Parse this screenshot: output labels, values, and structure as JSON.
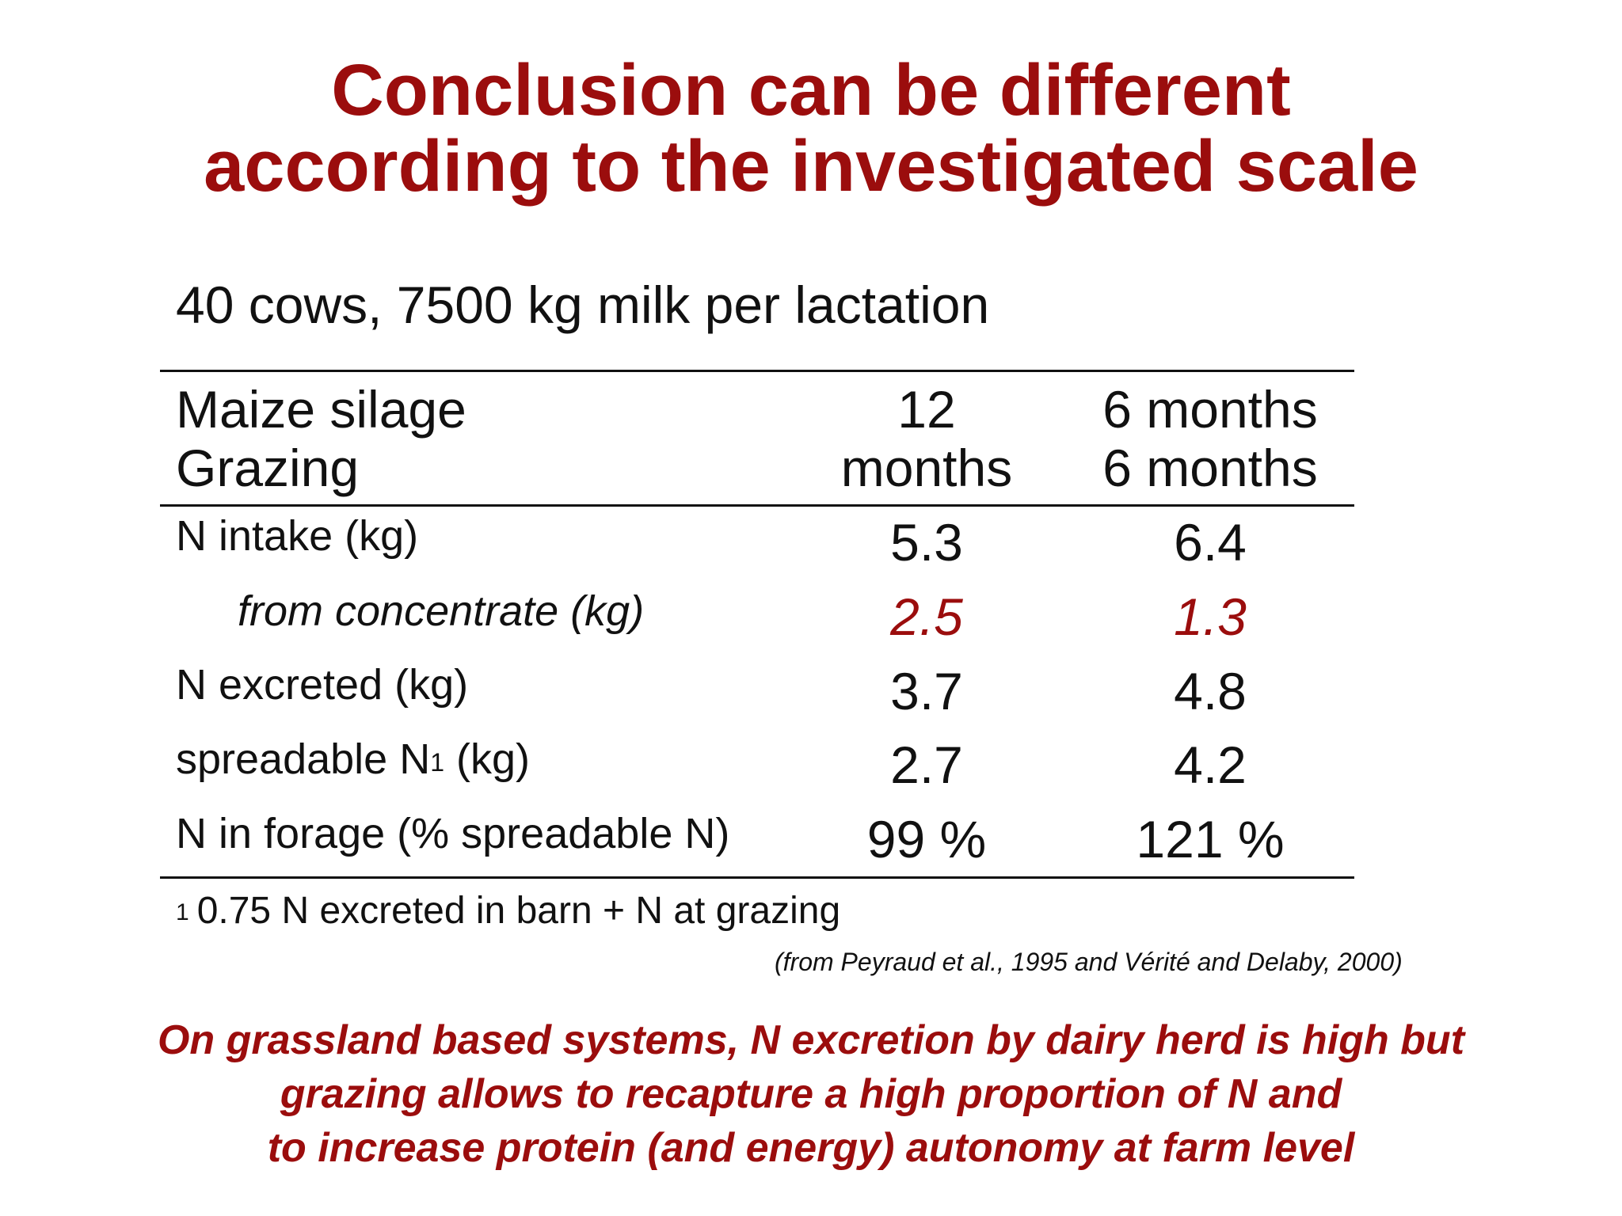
{
  "slide": {
    "title_line1": "Conclusion can be different",
    "title_line2": "according to the investigated scale",
    "subtitle": "40 cows, 7500 kg milk per lactation",
    "table": {
      "header": {
        "label_line1": "Maize silage",
        "label_line2": "Grazing",
        "col1_line1": "12",
        "col1_line2": "months",
        "col2_line1": "6 months",
        "col2_line2": "6 months"
      },
      "rows": [
        {
          "label": "N intake (kg)",
          "col1": "5.3",
          "col2": "6.4"
        },
        {
          "label": "from concentrate (kg)",
          "col1": "2.5",
          "col2": "1.3"
        },
        {
          "label": "N excreted (kg)",
          "col1": "3.7",
          "col2": "4.8"
        },
        {
          "label": "spreadable N",
          "label_sup": "1",
          "label_suffix": " (kg)",
          "col1": "2.7",
          "col2": "4.2"
        },
        {
          "label": "N in forage (% spreadable N)",
          "col1": "99 %",
          "col2": "121 %"
        }
      ]
    },
    "footnote_marker": "1",
    "footnote": "0.75 N excreted in barn + N at grazing",
    "source": "(from Peyraud et al., 1995 and Vérité and Delaby, 2000)",
    "conclusion_line1": "On grassland based systems, N excretion by dairy herd is high but",
    "conclusion_line2": "grazing allows to recapture a high proportion of N and",
    "conclusion_line3": "to increase protein (and energy) autonomy at farm level",
    "colors": {
      "accent_red": "#9b0d0d",
      "text": "#111111",
      "background": "#ffffff"
    }
  }
}
